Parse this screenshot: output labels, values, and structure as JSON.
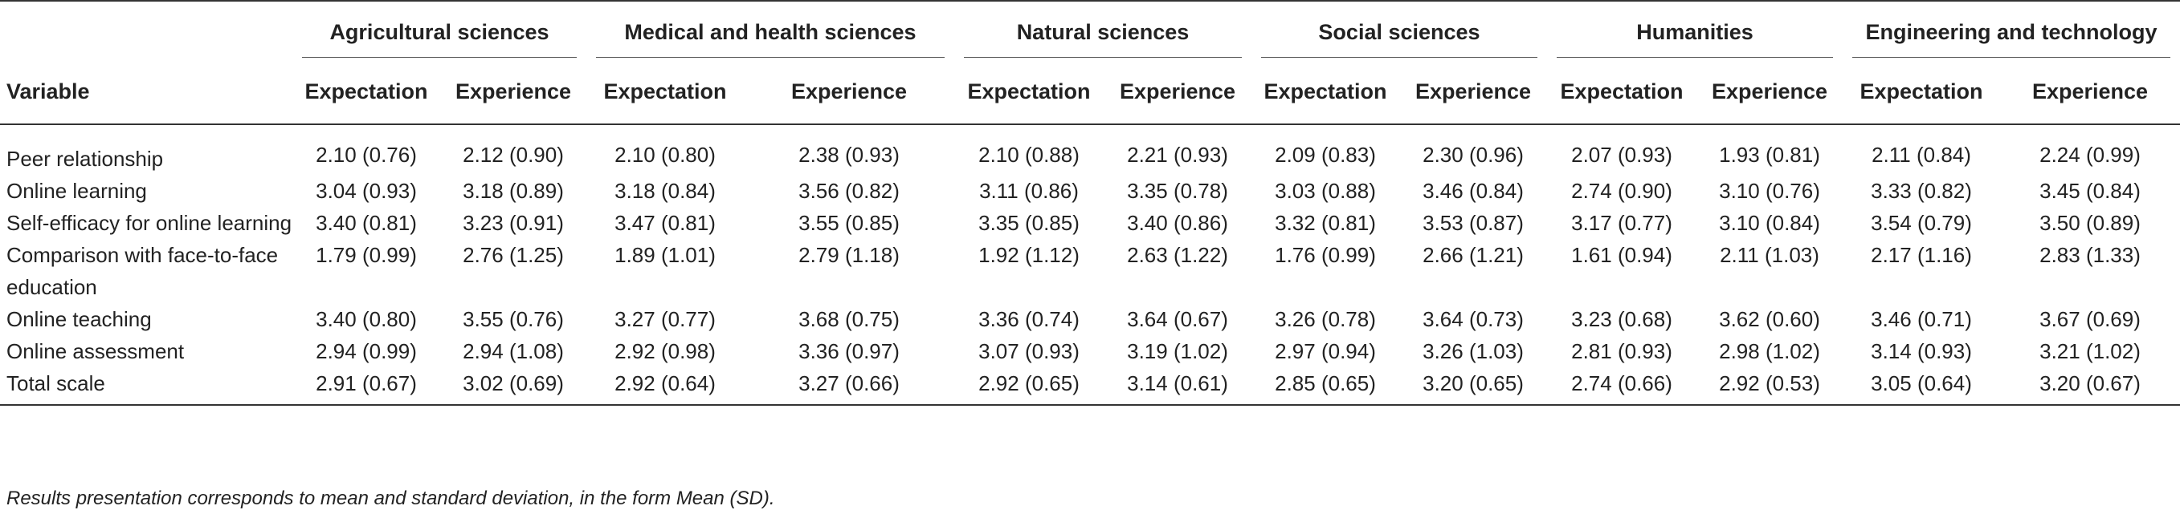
{
  "table": {
    "variable_header": "Variable",
    "groups": [
      "Agricultural sciences",
      "Medical and health sciences",
      "Natural sciences",
      "Social sciences",
      "Humanities",
      "Engineering and technology"
    ],
    "sub_headers": [
      "Expectation",
      "Experience"
    ],
    "rows": [
      {
        "variable": "Peer relationship",
        "values": [
          "2.10 (0.76)",
          "2.12 (0.90)",
          "2.10 (0.80)",
          "2.38 (0.93)",
          "2.10 (0.88)",
          "2.21 (0.93)",
          "2.09 (0.83)",
          "2.30 (0.96)",
          "2.07 (0.93)",
          "1.93 (0.81)",
          "2.11 (0.84)",
          "2.24 (0.99)"
        ]
      },
      {
        "variable": "Online learning",
        "values": [
          "3.04 (0.93)",
          "3.18 (0.89)",
          "3.18 (0.84)",
          "3.56 (0.82)",
          "3.11 (0.86)",
          "3.35 (0.78)",
          "3.03 (0.88)",
          "3.46 (0.84)",
          "2.74 (0.90)",
          "3.10 (0.76)",
          "3.33 (0.82)",
          "3.45 (0.84)"
        ]
      },
      {
        "variable": "Self-efficacy for online learning",
        "values": [
          "3.40 (0.81)",
          "3.23 (0.91)",
          "3.47 (0.81)",
          "3.55 (0.85)",
          "3.35 (0.85)",
          "3.40 (0.86)",
          "3.32 (0.81)",
          "3.53 (0.87)",
          "3.17 (0.77)",
          "3.10 (0.84)",
          "3.54 (0.79)",
          "3.50 (0.89)"
        ]
      },
      {
        "variable": "Comparison with face-to-face education",
        "values": [
          "1.79 (0.99)",
          "2.76 (1.25)",
          "1.89 (1.01)",
          "2.79 (1.18)",
          "1.92 (1.12)",
          "2.63 (1.22)",
          "1.76 (0.99)",
          "2.66 (1.21)",
          "1.61 (0.94)",
          "2.11 (1.03)",
          "2.17 (1.16)",
          "2.83 (1.33)"
        ]
      },
      {
        "variable": "Online teaching",
        "values": [
          "3.40 (0.80)",
          "3.55 (0.76)",
          "3.27 (0.77)",
          "3.68 (0.75)",
          "3.36 (0.74)",
          "3.64 (0.67)",
          "3.26 (0.78)",
          "3.64 (0.73)",
          "3.23 (0.68)",
          "3.62 (0.60)",
          "3.46 (0.71)",
          "3.67 (0.69)"
        ]
      },
      {
        "variable": "Online assessment",
        "values": [
          "2.94 (0.99)",
          "2.94 (1.08)",
          "2.92 (0.98)",
          "3.36 (0.97)",
          "3.07 (0.93)",
          "3.19 (1.02)",
          "2.97 (0.94)",
          "3.26 (1.03)",
          "2.81 (0.93)",
          "2.98 (1.02)",
          "3.14 (0.93)",
          "3.21 (1.02)"
        ]
      },
      {
        "variable": "Total scale",
        "values": [
          "2.91 (0.67)",
          "3.02 (0.69)",
          "2.92 (0.64)",
          "3.27 (0.66)",
          "2.92 (0.65)",
          "3.14 (0.61)",
          "2.85 (0.65)",
          "3.20 (0.65)",
          "2.74 (0.66)",
          "2.92 (0.53)",
          "3.05 (0.64)",
          "3.20 (0.67)"
        ]
      }
    ]
  },
  "footnote": "Results presentation corresponds to mean and standard deviation, in the form Mean (SD)."
}
